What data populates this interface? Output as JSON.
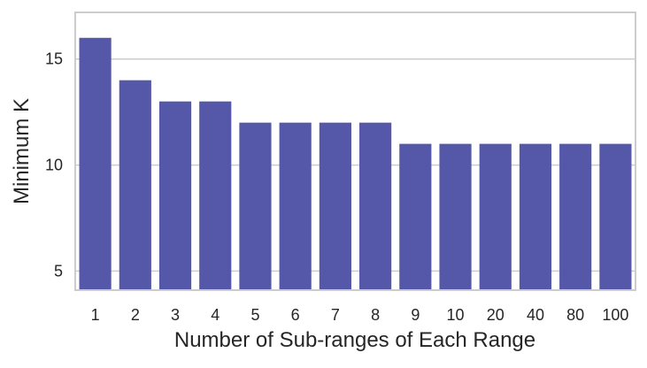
{
  "chart_data": {
    "type": "bar",
    "categories": [
      "1",
      "2",
      "3",
      "4",
      "5",
      "6",
      "7",
      "8",
      "9",
      "10",
      "20",
      "40",
      "80",
      "100"
    ],
    "values": [
      16,
      14,
      13,
      13,
      12,
      12,
      12,
      12,
      11,
      11,
      11,
      11,
      11,
      11
    ],
    "title": "",
    "xlabel": "Number of Sub-ranges of Each Range",
    "ylabel": "Minimum K",
    "ylim": [
      4.1,
      17.2
    ],
    "yticks": [
      5,
      10,
      15
    ],
    "grid": "horizontal",
    "bar_color": "#5558a8",
    "grid_color": "#cccccc",
    "frame_color": "#cccccc",
    "background": "#ffffff"
  }
}
